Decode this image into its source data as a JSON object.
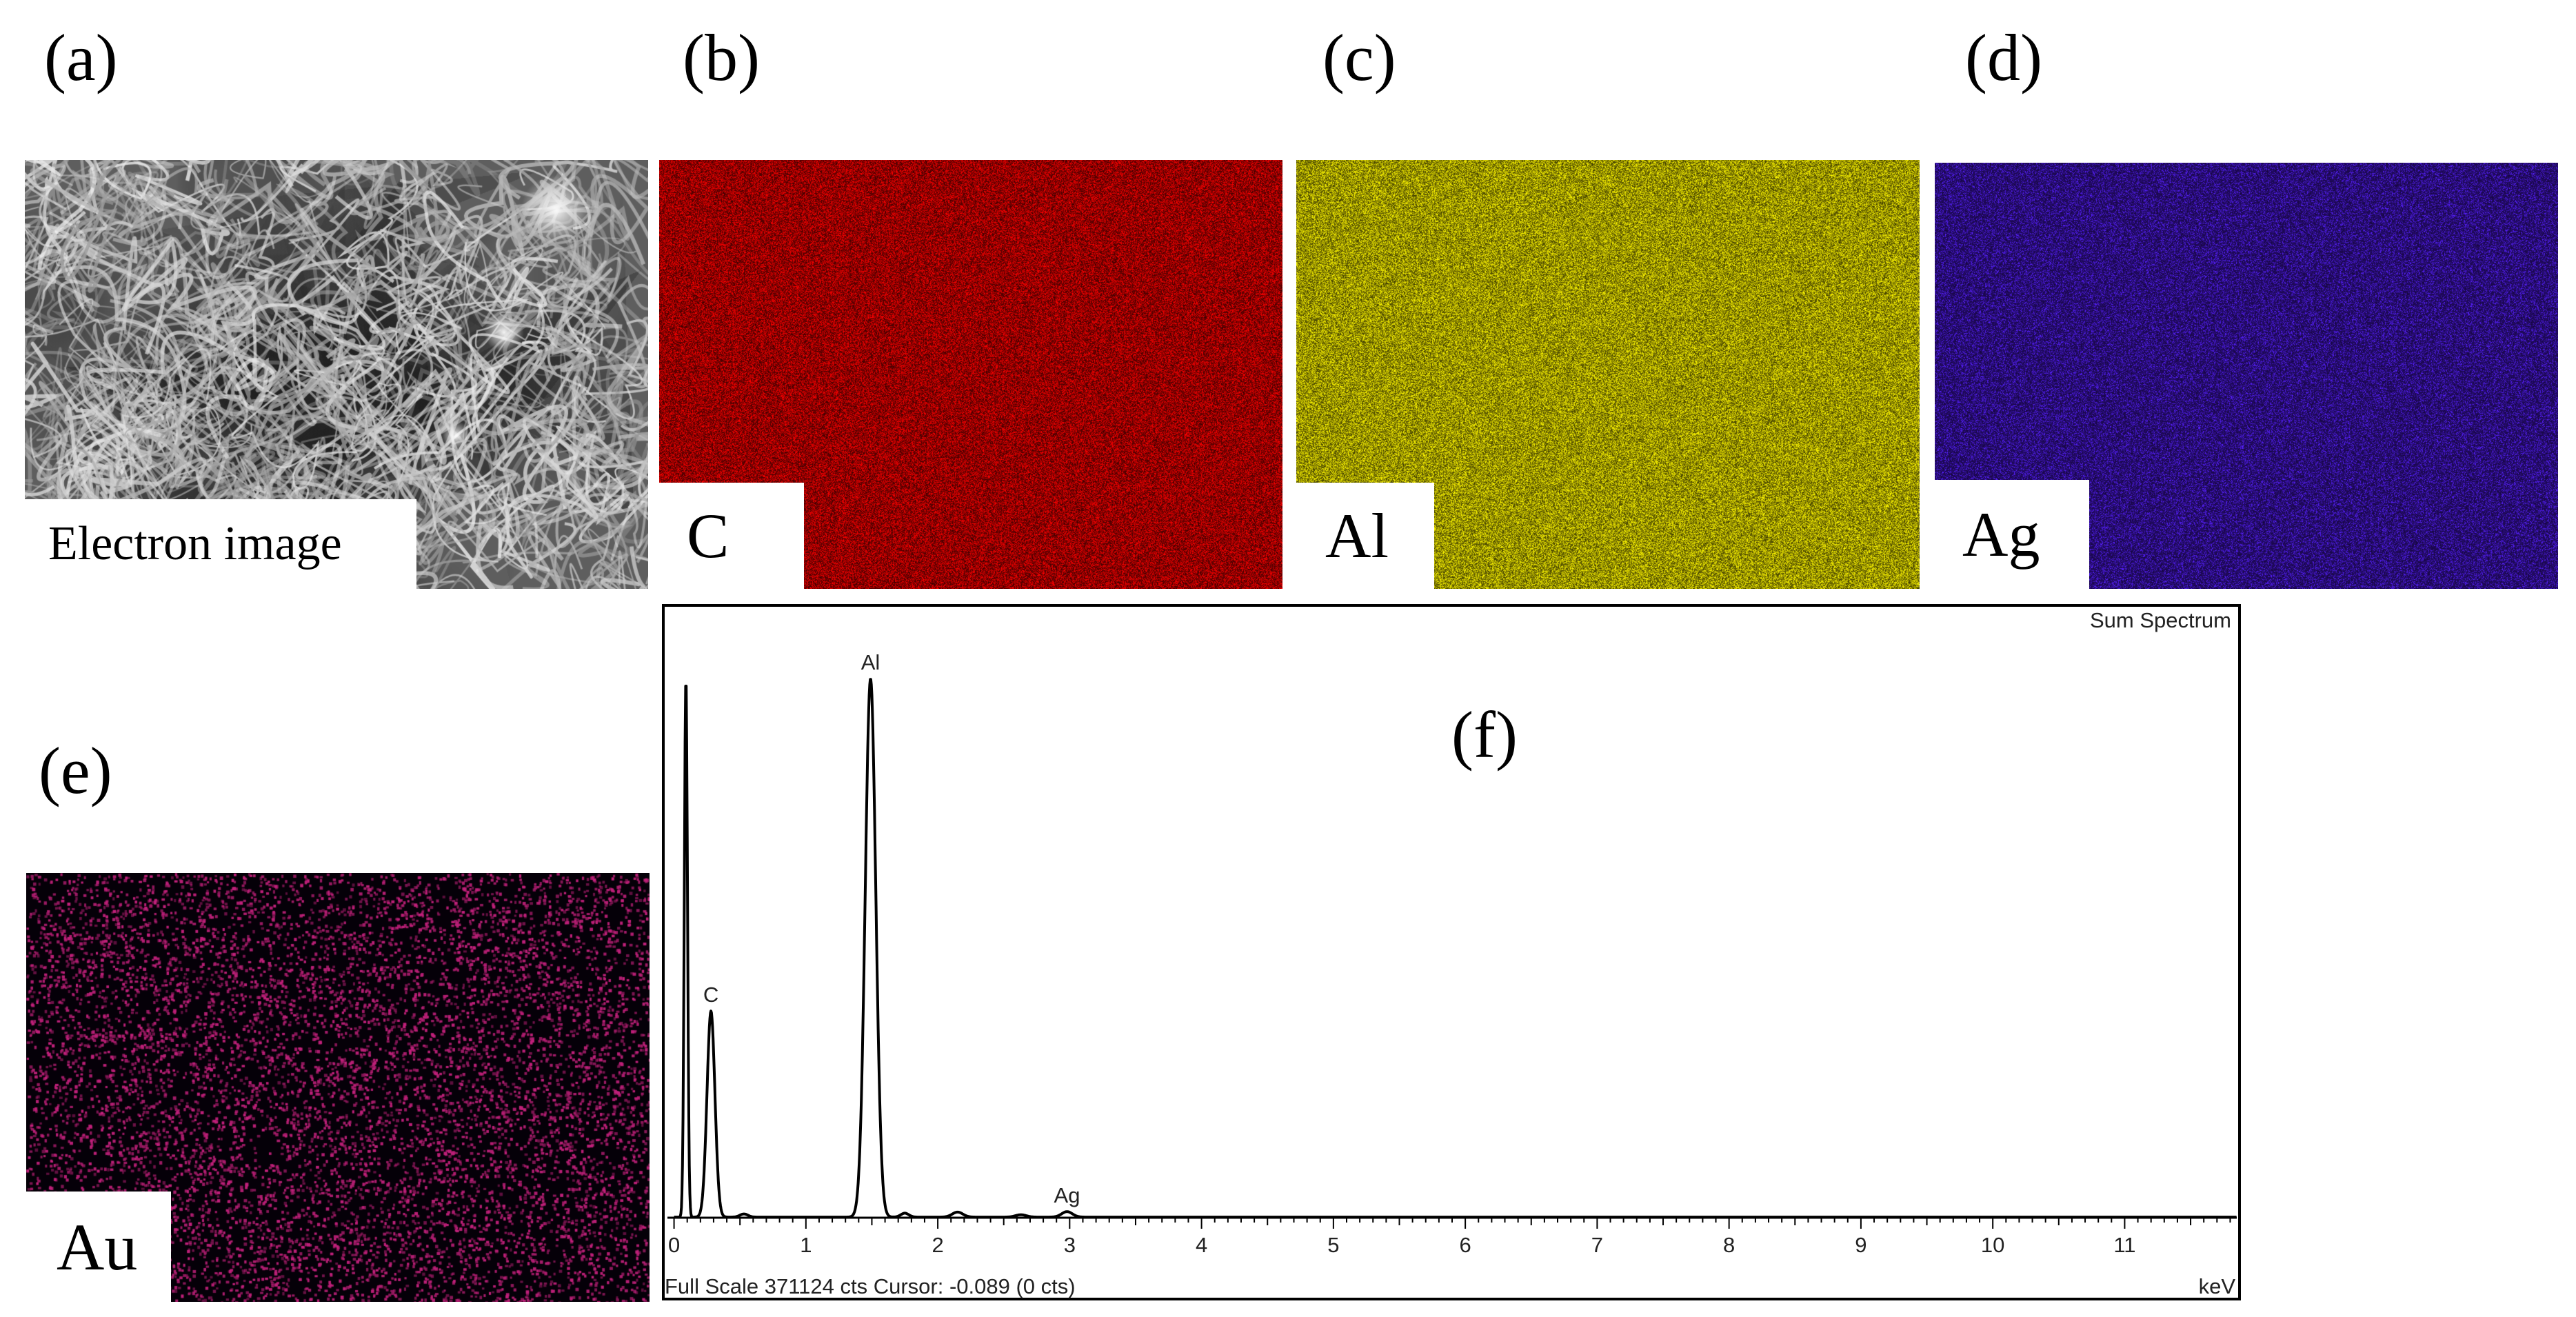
{
  "panels": {
    "a": {
      "tag": "(a)",
      "map_label": "Electron image"
    },
    "b": {
      "tag": "(b)",
      "map_label": "C",
      "color": "#d40000"
    },
    "c": {
      "tag": "(c)",
      "map_label": "Al",
      "color": "#d8d000"
    },
    "d": {
      "tag": "(d)",
      "map_label": "Ag",
      "color": "#4a1ee0"
    },
    "e": {
      "tag": "(e)",
      "map_label": "Au",
      "color": "#c0207a"
    },
    "f": {
      "tag": "(f)"
    }
  },
  "chart_data": {
    "type": "line",
    "title": "Sum Spectrum",
    "xlabel": "keV",
    "xlim": [
      -0.05,
      11.85
    ],
    "ylim": [
      0,
      371124
    ],
    "x_ticks": [
      0,
      1,
      2,
      3,
      4,
      5,
      6,
      7,
      8,
      9,
      10,
      11
    ],
    "footer": "Full Scale 371124 cts Cursor: -0.089  (0 cts)",
    "peaks": [
      {
        "label": "",
        "x": 0.09,
        "y": 345000,
        "width": 0.012
      },
      {
        "label": "C",
        "x": 0.28,
        "y": 132000,
        "width": 0.03
      },
      {
        "label": "Al",
        "x": 1.49,
        "y": 345000,
        "width": 0.04
      },
      {
        "label": "Ag",
        "x": 2.98,
        "y": 3500,
        "width": 0.04
      }
    ],
    "minor_peaks": [
      {
        "x": 0.53,
        "y": 2000,
        "width": 0.03
      },
      {
        "x": 1.75,
        "y": 2500,
        "width": 0.03
      },
      {
        "x": 2.15,
        "y": 3200,
        "width": 0.04
      },
      {
        "x": 2.63,
        "y": 1500,
        "width": 0.04
      }
    ]
  }
}
